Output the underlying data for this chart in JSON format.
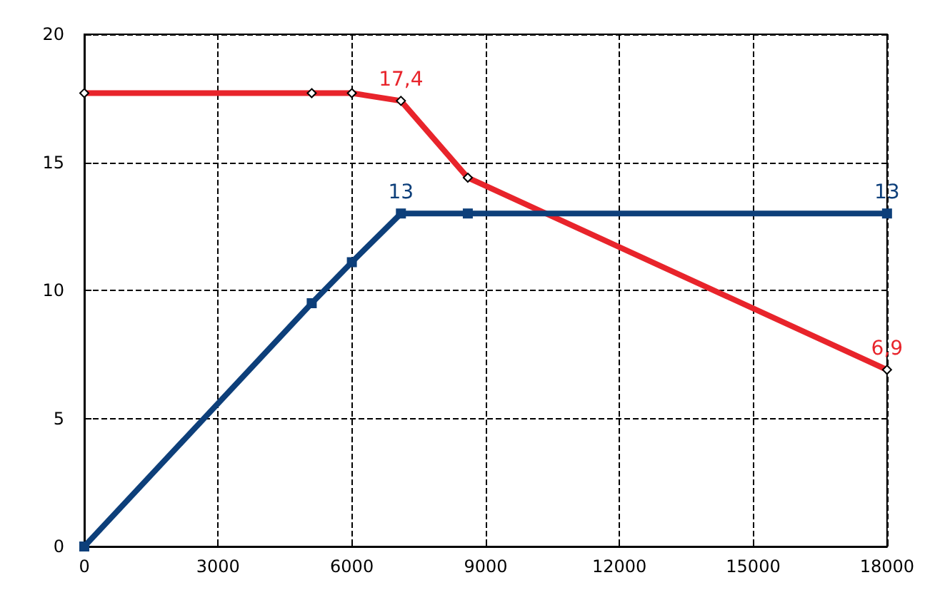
{
  "chart_data": {
    "type": "line",
    "xlim": [
      0,
      18000
    ],
    "xticks": [
      0,
      3000,
      6000,
      9000,
      12000,
      15000,
      18000
    ],
    "ylim": [
      0,
      20
    ],
    "yticks": [
      0,
      5,
      10,
      15,
      20
    ],
    "grid": true,
    "line_style": "solid",
    "series": [
      {
        "color": "#e8242b",
        "marker": "diamond",
        "x": [
          0,
          5100,
          6000,
          7100,
          8600,
          18000
        ],
        "values": [
          17.7,
          17.7,
          17.7,
          17.4,
          14.4,
          6.9
        ],
        "value_labels": [
          null,
          null,
          null,
          "17,4",
          null,
          "6,9"
        ]
      },
      {
        "color": "#0d3f7a",
        "marker": "square",
        "x": [
          0,
          5100,
          6000,
          7100,
          8600,
          18000
        ],
        "values": [
          0,
          9.5,
          11.1,
          13,
          13,
          13
        ],
        "value_labels": [
          null,
          null,
          null,
          "13",
          null,
          "13"
        ]
      }
    ]
  }
}
